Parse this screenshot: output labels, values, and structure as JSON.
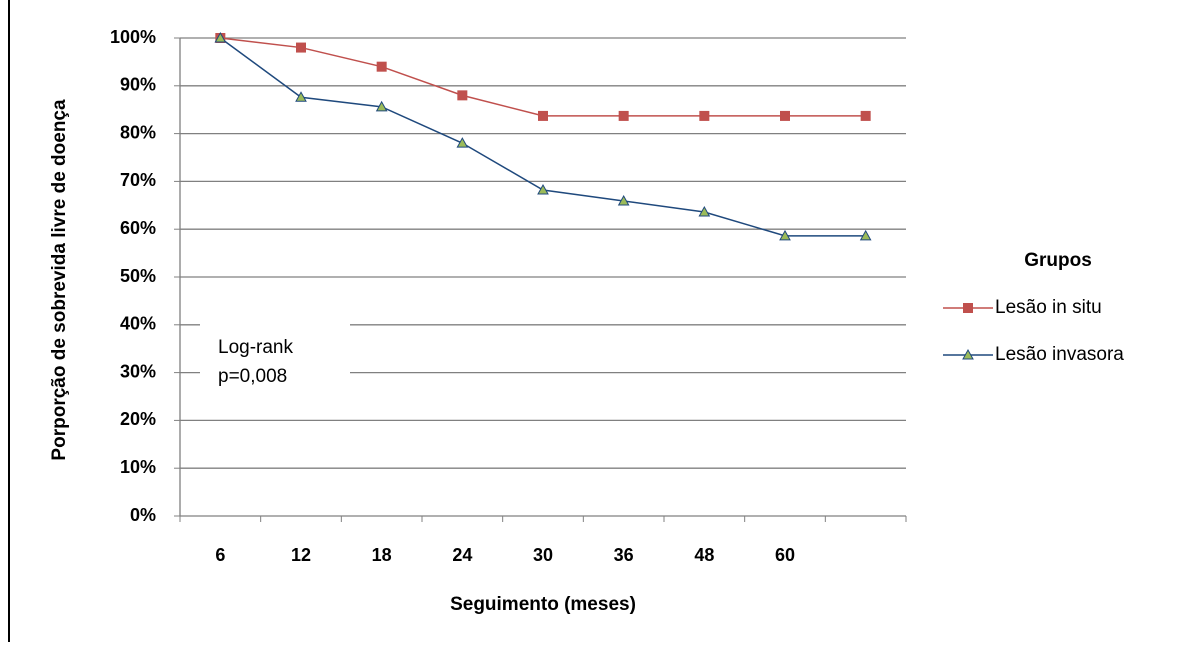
{
  "chart_data": {
    "type": "line",
    "x_label": "Seguimento (meses)",
    "y_label": "Porporção de sobrevida livre de doença",
    "categories": [
      "6",
      "12",
      "18",
      "24",
      "30",
      "36",
      "48",
      "60",
      null
    ],
    "series": [
      {
        "name": "Lesão in situ",
        "color": "#c0504d",
        "marker": "square",
        "values": [
          100,
          98,
          94,
          88,
          83.7,
          83.7,
          83.7,
          83.7,
          83.7
        ]
      },
      {
        "name": "Lesão invasora",
        "color": "#1f497d",
        "marker": "triangle",
        "marker_fill": "#9bbb59",
        "values": [
          100,
          87.6,
          85.6,
          78,
          68.2,
          65.9,
          63.6,
          58.6,
          58.6
        ]
      }
    ],
    "ylim": [
      0,
      100
    ],
    "yticks": [
      {
        "value": 0,
        "label": "0%"
      },
      {
        "value": 10,
        "label": "10%"
      },
      {
        "value": 20,
        "label": "20%"
      },
      {
        "value": 30,
        "label": "30%"
      },
      {
        "value": 40,
        "label": "40%"
      },
      {
        "value": 50,
        "label": "50%"
      },
      {
        "value": 60,
        "label": "60%"
      },
      {
        "value": 70,
        "label": "70%"
      },
      {
        "value": 80,
        "label": "80%"
      },
      {
        "value": 90,
        "label": "90%"
      },
      {
        "value": 100,
        "label": "100%"
      }
    ],
    "grid": true,
    "legend_title": "Grupos",
    "legend_position": "right",
    "annotation": [
      "Log-rank",
      "p=0,008"
    ]
  }
}
